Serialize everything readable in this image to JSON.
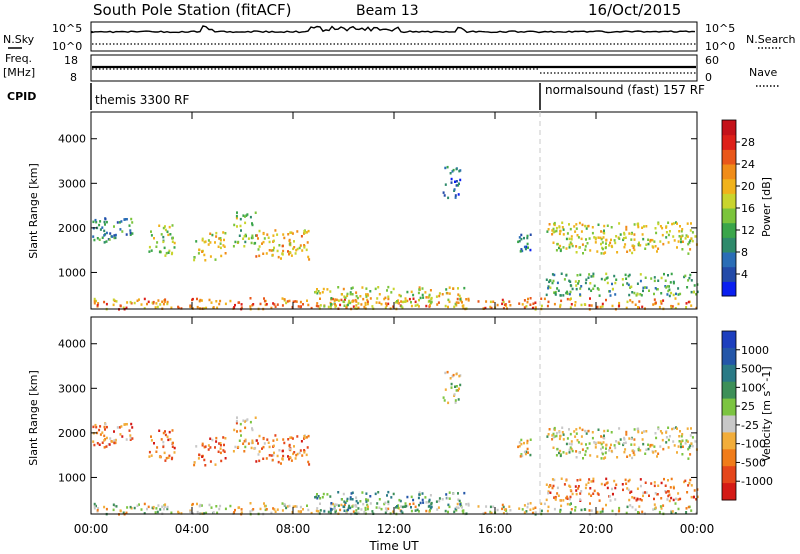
{
  "header": {
    "station": "South Pole Station (fitACF)",
    "beam": "Beam 13",
    "date": "16/Oct/2015"
  },
  "nsky_panel": {
    "left_label": "N.Sky",
    "left_ticks": [
      "10^5",
      "10^0"
    ],
    "right_ticks": [
      "10^5",
      "10^0"
    ],
    "right_label": "N.Search"
  },
  "freq_panel": {
    "left_label_line1": "Freq.",
    "left_label_line2": "[MHz]",
    "left_ticks": [
      "18",
      "8"
    ],
    "right_ticks": [
      "60",
      "0"
    ],
    "right_label": "Nave"
  },
  "cpid_panel": {
    "label": "CPID",
    "segments": [
      {
        "label": "themis 3300 RF",
        "start_hour": 0
      },
      {
        "label": "normalsound (fast) 157 RF",
        "start_hour": 18
      }
    ]
  },
  "colors": {
    "power_scale": [
      "#0a1ff0",
      "#234aa8",
      "#2a6db6",
      "#2e8a6b",
      "#3aa54a",
      "#7bc43c",
      "#c9d42d",
      "#f0b21b",
      "#f08c18",
      "#e9571a",
      "#dd2019",
      "#c4121a"
    ],
    "velocity_scale": [
      "#1d3fbe",
      "#2456a8",
      "#2a7a86",
      "#3d8f58",
      "#7cc441",
      "#c8c8c8",
      "#f2ad3a",
      "#f07c1a",
      "#e5461b",
      "#d41a16"
    ]
  },
  "chart_data": [
    {
      "type": "heatmap",
      "name": "power-panel",
      "xlabel": "",
      "ylabel": "Slant Range [km]",
      "x_range_hours": [
        0,
        24
      ],
      "y_range_km": [
        180,
        4600
      ],
      "y_ticks": [
        1000,
        2000,
        3000,
        4000
      ],
      "colorbar_label": "Power [dB]",
      "colorbar_ticks": [
        "4",
        "8",
        "12",
        "16",
        "20",
        "24",
        "28"
      ],
      "regions": [
        {
          "t0": 0.0,
          "t1": 1.7,
          "r0": 1700,
          "r1": 2250,
          "level": 3
        },
        {
          "t0": 2.2,
          "t1": 3.3,
          "r0": 1400,
          "r1": 2100,
          "level": 5
        },
        {
          "t0": 4.0,
          "t1": 5.3,
          "r0": 1300,
          "r1": 1950,
          "level": 6
        },
        {
          "t0": 5.6,
          "t1": 6.5,
          "r0": 1500,
          "r1": 2400,
          "level": 5
        },
        {
          "t0": 6.5,
          "t1": 8.6,
          "r0": 1300,
          "r1": 2000,
          "level": 7
        },
        {
          "t0": 13.9,
          "t1": 14.6,
          "r0": 2700,
          "r1": 3400,
          "level": 2
        },
        {
          "t0": 16.8,
          "t1": 17.4,
          "r0": 1500,
          "r1": 1900,
          "level": 2
        },
        {
          "t0": 18.0,
          "t1": 24.0,
          "r0": 1450,
          "r1": 2150,
          "level": 6
        },
        {
          "t0": 18.0,
          "t1": 24.0,
          "r0": 500,
          "r1": 1000,
          "level": 4
        },
        {
          "t0": 0.0,
          "t1": 24.0,
          "r0": 200,
          "r1": 450,
          "level": 8
        },
        {
          "t0": 8.8,
          "t1": 14.8,
          "r0": 250,
          "r1": 700,
          "level": 6
        }
      ]
    },
    {
      "type": "heatmap",
      "name": "velocity-panel",
      "xlabel": "Time UT",
      "ylabel": "Slant Range [km]",
      "x_range_hours": [
        0,
        24
      ],
      "y_range_km": [
        180,
        4600
      ],
      "y_ticks": [
        1000,
        2000,
        3000,
        4000
      ],
      "x_ticks": [
        "00:00",
        "04:00",
        "08:00",
        "12:00",
        "16:00",
        "20:00",
        "00:00"
      ],
      "colorbar_label": "Velocity [m s^-1]",
      "colorbar_ticks": [
        "1000",
        "500",
        "100",
        "25",
        "-25",
        "-100",
        "-500",
        "-1000"
      ],
      "regions": [
        {
          "t0": 0.0,
          "t1": 1.7,
          "r0": 1700,
          "r1": 2250,
          "level": 7
        },
        {
          "t0": 2.2,
          "t1": 3.3,
          "r0": 1400,
          "r1": 2100,
          "level": 7
        },
        {
          "t0": 4.0,
          "t1": 5.3,
          "r0": 1300,
          "r1": 1950,
          "level": 7
        },
        {
          "t0": 5.6,
          "t1": 6.5,
          "r0": 1500,
          "r1": 2400,
          "level": 6
        },
        {
          "t0": 6.5,
          "t1": 8.6,
          "r0": 1300,
          "r1": 2000,
          "level": 7
        },
        {
          "t0": 13.9,
          "t1": 14.6,
          "r0": 2700,
          "r1": 3400,
          "level": 5
        },
        {
          "t0": 16.8,
          "t1": 17.4,
          "r0": 1500,
          "r1": 1900,
          "level": 5
        },
        {
          "t0": 18.0,
          "t1": 24.0,
          "r0": 1450,
          "r1": 2150,
          "level": 5
        },
        {
          "t0": 18.0,
          "t1": 24.0,
          "r0": 500,
          "r1": 1000,
          "level": 7
        },
        {
          "t0": 0.0,
          "t1": 24.0,
          "r0": 200,
          "r1": 450,
          "level": 5
        },
        {
          "t0": 8.8,
          "t1": 14.8,
          "r0": 250,
          "r1": 700,
          "level": 3
        }
      ]
    }
  ]
}
